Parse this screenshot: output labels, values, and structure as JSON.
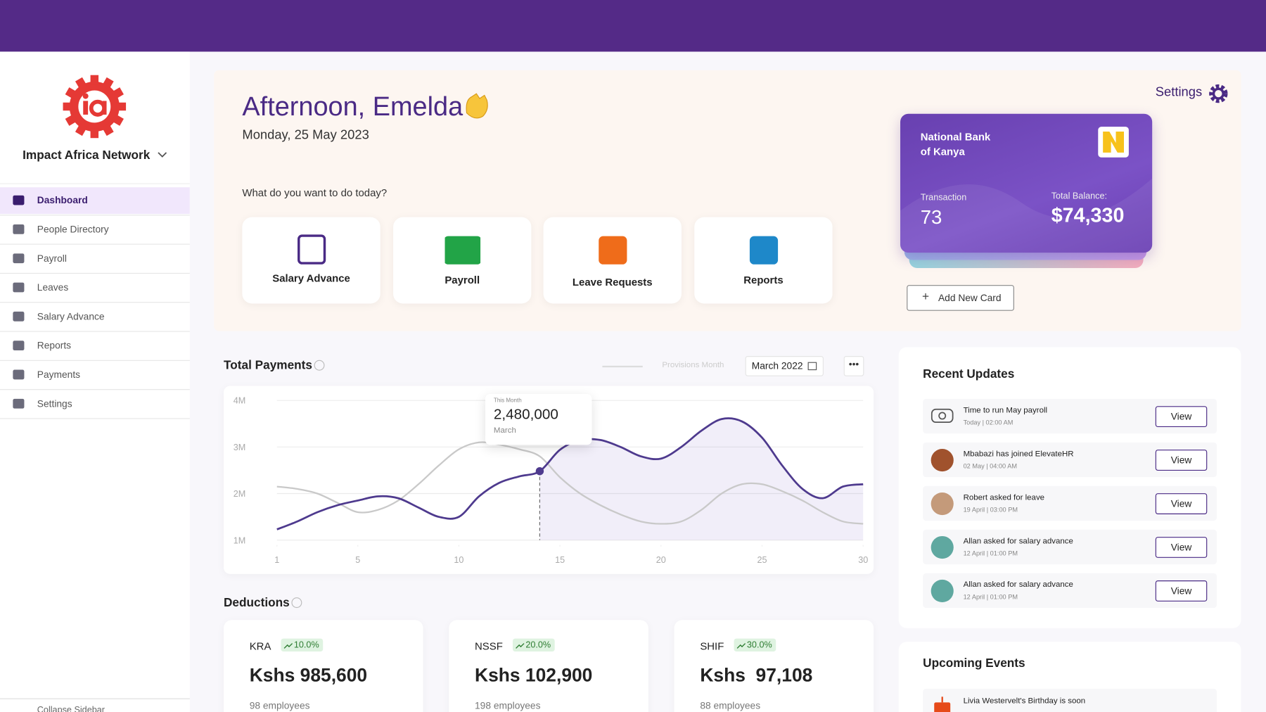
{
  "sidebar": {
    "org": "Impact Africa Network",
    "nav": [
      "Dashboard",
      "People Directory",
      "Payroll",
      "Leaves",
      "Salary Advance",
      "Reports",
      "Payments",
      "Settings"
    ],
    "collapse": "Collapse Sidebar"
  },
  "header": {
    "greeting": "Afternoon, Emelda",
    "date": "Monday, 25 May 2023",
    "prompt": "What do you want to do today?",
    "settings": "Settings",
    "actions": [
      "Salary Advance",
      "Payroll",
      "Leave Requests",
      "Reports"
    ]
  },
  "bank_card": {
    "bank_line1": "National Bank",
    "bank_line2": "of Kanya",
    "transaction_label": "Transaction",
    "transaction": "73",
    "balance_label": "Total Balance:",
    "balance": "$74,330",
    "add_card": "Add New Card"
  },
  "total_payments": {
    "title": "Total Payments",
    "filter_label": "Provisions Month",
    "month": "March 2022",
    "tooltip": {
      "caption": "This Month",
      "value": "2,480,000",
      "month": "March"
    },
    "chart": {
      "type": "line",
      "x": [
        1,
        2,
        3,
        4,
        5,
        6,
        7,
        8,
        9,
        10,
        11,
        12,
        13,
        14,
        15,
        16,
        17,
        18,
        19,
        20,
        21,
        22,
        23,
        24,
        25,
        26,
        27,
        28,
        29,
        30
      ],
      "xlim": [
        1,
        30
      ],
      "xticks": [
        1,
        5,
        10,
        15,
        20,
        25,
        30
      ],
      "ylim": [
        1000000,
        4000000
      ],
      "yticks": [
        {
          "value": 1000000,
          "label": "1M"
        },
        {
          "value": 2000000,
          "label": "2M"
        },
        {
          "value": 3000000,
          "label": "3M"
        },
        {
          "value": 4000000,
          "label": "4M"
        }
      ],
      "highlight_index": 13,
      "series": [
        {
          "color": "#c9c9c9",
          "values": [
            2150000,
            2100000,
            2000000,
            1800000,
            1600000,
            1650000,
            1850000,
            2200000,
            2600000,
            2950000,
            3100000,
            3050000,
            2950000,
            2800000,
            2350000,
            2000000,
            1750000,
            1550000,
            1400000,
            1350000,
            1400000,
            1650000,
            2000000,
            2200000,
            2200000,
            2050000,
            1850000,
            1600000,
            1400000,
            1350000
          ]
        },
        {
          "color": "#4e3a8e",
          "values": [
            1230000,
            1400000,
            1600000,
            1750000,
            1850000,
            1940000,
            1900000,
            1700000,
            1500000,
            1500000,
            1940000,
            2230000,
            2370000,
            2480000,
            2940000,
            3150000,
            3150000,
            3000000,
            2800000,
            2750000,
            3000000,
            3350000,
            3600000,
            3550000,
            3200000,
            2600000,
            2100000,
            1900000,
            2150000,
            2200000
          ]
        }
      ]
    }
  },
  "deductions": {
    "title": "Deductions",
    "cards": [
      {
        "name": "KRA",
        "change": "10.0%",
        "amount": "Kshs 985,600",
        "employees": "98 employees"
      },
      {
        "name": "NSSF",
        "change": "20.0%",
        "amount": "Kshs 102,900",
        "employees": "198 employees"
      },
      {
        "name": "SHIF",
        "change": "30.0%",
        "amount": "Kshs  97,108",
        "employees": "88 employees"
      }
    ]
  },
  "recent_updates": {
    "title": "Recent Updates",
    "button": "View",
    "items": [
      {
        "text": "Time to run May payroll",
        "time": "Today | 02:00 AM"
      },
      {
        "text": "Mbabazi has joined ElevateHR",
        "time": "02 May | 04:00 AM"
      },
      {
        "text": "Robert asked for leave",
        "time": "19 April | 03:00 PM"
      },
      {
        "text": "Allan asked for salary advance",
        "time": "12 April | 01:00 PM"
      },
      {
        "text": "Allan asked for salary advance",
        "time": "12 April | 01:00 PM"
      }
    ]
  },
  "upcoming_events": {
    "title": "Upcoming Events",
    "items": [
      "Livia Westervelt's Birthday is soon"
    ]
  }
}
